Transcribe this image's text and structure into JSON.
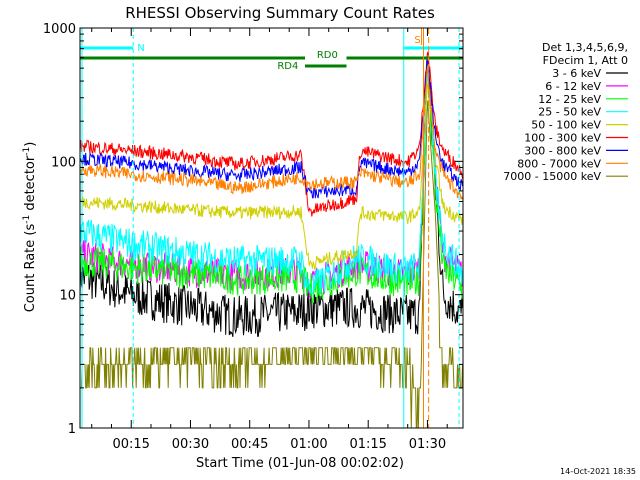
{
  "chart_data": {
    "type": "line",
    "title": "RHESSI Observing Summary Count Rates",
    "xlabel": "Start Time (01-Jun-08 00:02:02)",
    "ylabel_main": "Count Rate (s",
    "ylabel_sup1": "-1",
    "ylabel_mid": " detector",
    "ylabel_sup2": "-1",
    "ylabel_end": ")",
    "yscale": "log",
    "ylim": [
      1,
      1000
    ],
    "xlim_minutes": [
      2.03,
      99
    ],
    "x_tick_labels": [
      "00:15",
      "00:30",
      "00:45",
      "01:00",
      "01:15",
      "01:30"
    ],
    "x_tick_minutes": [
      15,
      30,
      45,
      60,
      75,
      90
    ],
    "y_tick_labels": [
      "1",
      "10",
      "100",
      "1000"
    ],
    "y_tick_values": [
      1,
      10,
      100,
      1000
    ],
    "legend_header": [
      "Det 1,3,4,5,6,9,",
      "FDecim 1, Att 0"
    ],
    "legend_placement": "right",
    "series": [
      {
        "name": "3 - 6 keV",
        "color": "#000000",
        "key": [
          [
            2,
            14
          ],
          [
            15,
            10
          ],
          [
            30,
            8
          ],
          [
            42,
            6.8
          ],
          [
            58,
            7.5
          ],
          [
            60,
            8
          ],
          [
            72,
            8
          ],
          [
            85,
            7
          ],
          [
            88,
            7.2
          ],
          [
            90,
            600
          ],
          [
            92,
            60
          ],
          [
            94,
            10
          ],
          [
            99,
            7
          ]
        ]
      },
      {
        "name": "6 - 12 keV",
        "color": "#ff00ff",
        "key": [
          [
            2,
            20
          ],
          [
            15,
            17
          ],
          [
            30,
            15
          ],
          [
            42,
            14
          ],
          [
            58,
            15
          ],
          [
            60,
            12
          ],
          [
            72,
            17
          ],
          [
            85,
            14
          ],
          [
            88,
            16
          ],
          [
            90,
            650
          ],
          [
            92,
            80
          ],
          [
            94,
            20
          ],
          [
            99,
            14
          ]
        ]
      },
      {
        "name": "12 - 25 keV",
        "color": "#00ff00",
        "key": [
          [
            2,
            18
          ],
          [
            15,
            16
          ],
          [
            30,
            14.5
          ],
          [
            42,
            13
          ],
          [
            58,
            13.5
          ],
          [
            60,
            11
          ],
          [
            72,
            15
          ],
          [
            85,
            12
          ],
          [
            88,
            13
          ],
          [
            90,
            500
          ],
          [
            92,
            60
          ],
          [
            94,
            16
          ],
          [
            99,
            11
          ]
        ]
      },
      {
        "name": "25 - 50 keV",
        "color": "#00ffff",
        "key": [
          [
            2,
            30
          ],
          [
            15,
            24
          ],
          [
            30,
            20
          ],
          [
            42,
            18
          ],
          [
            58,
            18
          ],
          [
            60,
            11
          ],
          [
            72,
            19
          ],
          [
            85,
            15
          ],
          [
            88,
            17
          ],
          [
            90,
            550
          ],
          [
            92,
            70
          ],
          [
            94,
            25
          ],
          [
            99,
            14
          ]
        ]
      },
      {
        "name": "50 - 100 keV",
        "color": "#d0d000",
        "key": [
          [
            2,
            50
          ],
          [
            15,
            47
          ],
          [
            30,
            43
          ],
          [
            42,
            41
          ],
          [
            58,
            42
          ],
          [
            60,
            17
          ],
          [
            72,
            21
          ],
          [
            73,
            41
          ],
          [
            85,
            38
          ],
          [
            88,
            42
          ],
          [
            90,
            380
          ],
          [
            92,
            110
          ],
          [
            94,
            45
          ],
          [
            99,
            36
          ]
        ]
      },
      {
        "name": "100 - 300 keV",
        "color": "#ff0000",
        "key": [
          [
            2,
            130
          ],
          [
            15,
            120
          ],
          [
            30,
            108
          ],
          [
            42,
            95
          ],
          [
            58,
            112
          ],
          [
            60,
            42
          ],
          [
            72,
            53
          ],
          [
            73,
            120
          ],
          [
            85,
            98
          ],
          [
            88,
            125
          ],
          [
            90,
            700
          ],
          [
            92,
            180
          ],
          [
            94,
            120
          ],
          [
            99,
            82
          ]
        ]
      },
      {
        "name": "300 - 800 keV",
        "color": "#0000ff",
        "key": [
          [
            2,
            105
          ],
          [
            15,
            97
          ],
          [
            30,
            85
          ],
          [
            42,
            78
          ],
          [
            58,
            90
          ],
          [
            60,
            58
          ],
          [
            72,
            62
          ],
          [
            73,
            97
          ],
          [
            85,
            82
          ],
          [
            88,
            100
          ],
          [
            90,
            600
          ],
          [
            92,
            150
          ],
          [
            94,
            95
          ],
          [
            99,
            63
          ]
        ]
      },
      {
        "name": "800 - 7000 keV",
        "color": "#ff8000",
        "key": [
          [
            2,
            88
          ],
          [
            15,
            80
          ],
          [
            30,
            72
          ],
          [
            42,
            63
          ],
          [
            58,
            76
          ],
          [
            60,
            68
          ],
          [
            72,
            70
          ],
          [
            73,
            82
          ],
          [
            85,
            68
          ],
          [
            88,
            80
          ],
          [
            90,
            500
          ],
          [
            92,
            120
          ],
          [
            94,
            80
          ],
          [
            99,
            52
          ]
        ]
      },
      {
        "name": "7000 - 15000 keV",
        "color": "#808000",
        "key": [
          [
            2,
            2
          ],
          [
            15,
            2.3
          ],
          [
            30,
            2.6
          ],
          [
            42,
            2.2
          ],
          [
            58,
            3
          ],
          [
            60,
            3
          ],
          [
            72,
            3
          ],
          [
            85,
            2.2
          ],
          [
            88,
            1
          ],
          [
            90,
            300
          ],
          [
            92,
            40
          ],
          [
            94,
            2
          ],
          [
            99,
            2
          ]
        ]
      }
    ],
    "annotations": {
      "flags": [
        {
          "label": "N",
          "color": "#00ffff"
        },
        {
          "label": "RD0",
          "color": "#008000"
        },
        {
          "label": "RD4",
          "color": "#008000"
        },
        {
          "label": "S",
          "color": "#ff8000"
        }
      ]
    },
    "timestamp": "14-Oct-2021 18:35"
  }
}
